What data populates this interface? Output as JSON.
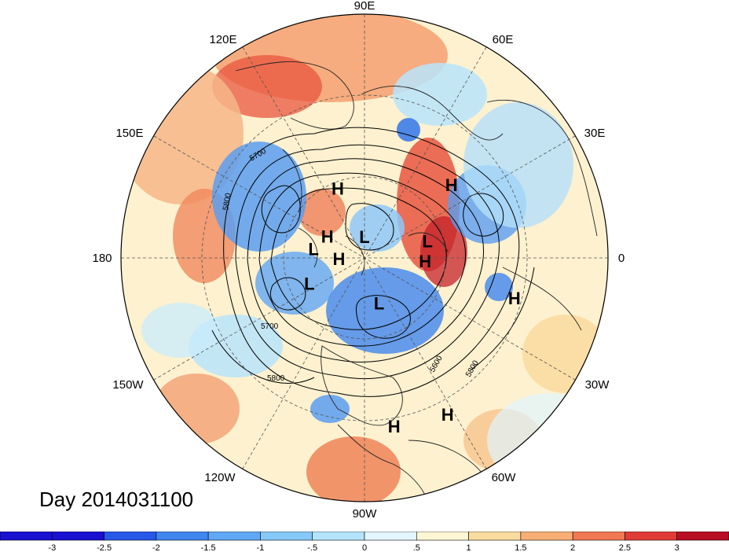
{
  "title": "Day 2014031100",
  "longitude_labels": [
    "90E",
    "60E",
    "30E",
    "0",
    "30W",
    "60W",
    "90W",
    "120W",
    "150W",
    "180",
    "150E",
    "120E"
  ],
  "pressure_centers": [
    {
      "type": "H",
      "lon": 111,
      "lat": 56
    },
    {
      "type": "H",
      "lon": 40,
      "lat": 40
    },
    {
      "type": "L",
      "lon": 15,
      "lat": 60
    },
    {
      "type": "H",
      "lon": -3,
      "lat": 62
    },
    {
      "type": "H",
      "lon": -15,
      "lat": 25
    },
    {
      "type": "H",
      "lon": -80,
      "lat": 20
    },
    {
      "type": "H",
      "lon": -62,
      "lat": 18
    },
    {
      "type": "L",
      "lon": -72,
      "lat": 68
    },
    {
      "type": "L",
      "lon": -155,
      "lat": 62
    },
    {
      "type": "H",
      "lon": -178,
      "lat": 78
    },
    {
      "type": "L",
      "lon": 90,
      "lat": 80
    },
    {
      "type": "L",
      "lon": 170,
      "lat": 66
    },
    {
      "type": "H",
      "lon": 150,
      "lat": 70
    }
  ],
  "contour_labels": [
    "5700",
    "5800",
    "5700",
    "5800",
    "5600",
    "5800"
  ],
  "colorbar": {
    "ticks": [
      "-3",
      "-2.5",
      "-2",
      "-1.5",
      "-1",
      "-.5",
      "0",
      ".5",
      "1",
      "1.5",
      "2",
      "2.5",
      "3"
    ],
    "colors": [
      "#1a10d0",
      "#2858e8",
      "#3f86ee",
      "#60a8f4",
      "#86c8f8",
      "#b4e4fc",
      "#e4f6fd",
      "#fdf6d4",
      "#fbdca0",
      "#f8ae74",
      "#f07852",
      "#e03c36",
      "#b80e24"
    ]
  }
}
